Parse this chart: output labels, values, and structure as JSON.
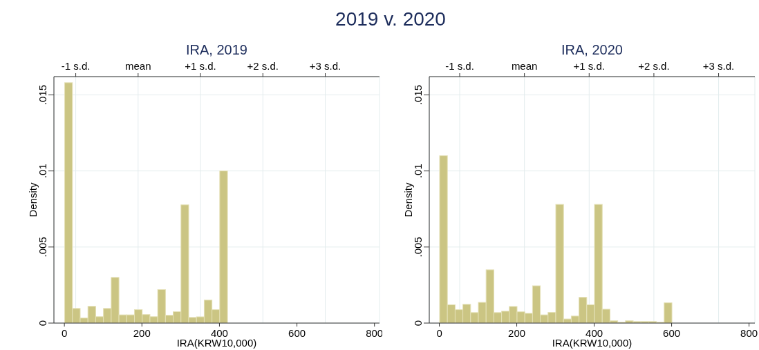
{
  "chart_data": [
    {
      "type": "other",
      "title": "2019 v. 2020"
    },
    {
      "type": "histogram",
      "title": "IRA, 2019",
      "xlabel": "IRA(KRW10,000)",
      "ylabel": "Density",
      "color": "#cbc583",
      "grid": true,
      "bins": [
        0,
        20,
        40,
        60,
        80,
        100,
        120,
        140,
        160,
        180,
        200,
        220,
        240,
        260,
        280,
        300,
        320,
        340,
        360,
        380,
        400,
        420
      ],
      "values": [
        0.0158,
        0.00096,
        0.00033,
        0.0011,
        0.00042,
        0.00096,
        0.003,
        0.00054,
        0.00054,
        0.00088,
        0.00056,
        0.00042,
        0.0022,
        0.00051,
        0.00075,
        0.00777,
        0.00037,
        0.00041,
        0.00151,
        0.00088,
        0.01
      ],
      "xlim": [
        -27,
        813
      ],
      "xticks": [
        0,
        200,
        400,
        600,
        800
      ],
      "x2lim": [
        -1.35,
        3.87
      ],
      "x2ticks": [
        {
          "value": -1,
          "label": "-1 s.d."
        },
        {
          "value": 0,
          "label": "mean"
        },
        {
          "value": 1,
          "label": "+1 s.d."
        },
        {
          "value": 2,
          "label": "+2 s.d."
        },
        {
          "value": 3,
          "label": "+3 s.d."
        }
      ],
      "ylim": [
        0,
        0.0162
      ],
      "yticks": [
        {
          "value": 0,
          "label": "0"
        },
        {
          "value": 0.005,
          "label": ".005"
        },
        {
          "value": 0.01,
          "label": ".01"
        },
        {
          "value": 0.015,
          "label": ".015"
        }
      ]
    },
    {
      "type": "histogram",
      "title": "IRA, 2020",
      "xlabel": "IRA(KRW10,000)",
      "ylabel": "Density",
      "color": "#cbc583",
      "grid": true,
      "bins": [
        0,
        20,
        40,
        60,
        80,
        100,
        120,
        140,
        160,
        180,
        200,
        220,
        240,
        260,
        280,
        300,
        320,
        340,
        360,
        380,
        400,
        420,
        440,
        460,
        480,
        500,
        520,
        540,
        560,
        580,
        600
      ],
      "values": [
        0.011,
        0.0012,
        0.00088,
        0.00123,
        0.00069,
        0.00136,
        0.0035,
        0.00069,
        0.00078,
        0.00109,
        0.00074,
        0.00064,
        0.00245,
        0.00054,
        0.0007,
        0.0078,
        0.00027,
        0.00046,
        0.00169,
        0.0012,
        0.0078,
        0.00091,
        0.00015,
        5e-05,
        0.00015,
        0.0001,
        0.0001,
        0.0001,
        5e-05,
        0.00133
      ],
      "xlim": [
        -26,
        815
      ],
      "xticks": [
        0,
        200,
        400,
        600,
        800
      ],
      "x2lim": [
        -1.47,
        3.56
      ],
      "x2ticks": [
        {
          "value": -1,
          "label": "-1 s.d."
        },
        {
          "value": 0,
          "label": "mean"
        },
        {
          "value": 1,
          "label": "+1 s.d."
        },
        {
          "value": 2,
          "label": "+2 s.d."
        },
        {
          "value": 3,
          "label": "+3 s.d."
        }
      ],
      "ylim": [
        0,
        0.0162
      ],
      "yticks": [
        {
          "value": 0,
          "label": "0"
        },
        {
          "value": 0.005,
          "label": ".005"
        },
        {
          "value": 0.01,
          "label": ".01"
        },
        {
          "value": 0.015,
          "label": ".015"
        }
      ]
    }
  ]
}
